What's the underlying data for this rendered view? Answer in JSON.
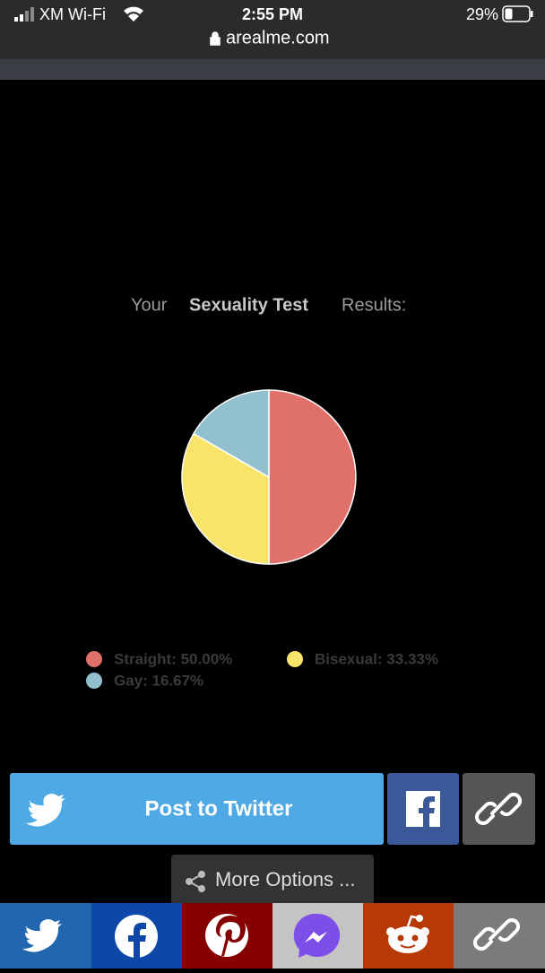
{
  "status_bar": {
    "carrier": "XM Wi-Fi",
    "time": "2:55 PM",
    "battery": "29%"
  },
  "address_bar": {
    "url": "arealme.com"
  },
  "heading": {
    "prefix": "Your",
    "test_name": "Sexuality Test",
    "suffix": "Results:"
  },
  "chart_data": {
    "type": "pie",
    "values": [
      50,
      33.33,
      16.67
    ],
    "value_labels": [
      "Straight: 50.00%",
      "Bisexual: 33.33%",
      "Gay: 16.67%"
    ],
    "colors": [
      "#e0716a",
      "#f9e46b",
      "#92c0cf"
    ]
  },
  "buttons": {
    "twitter": "Post to Twitter",
    "more_options": "More Options ..."
  }
}
